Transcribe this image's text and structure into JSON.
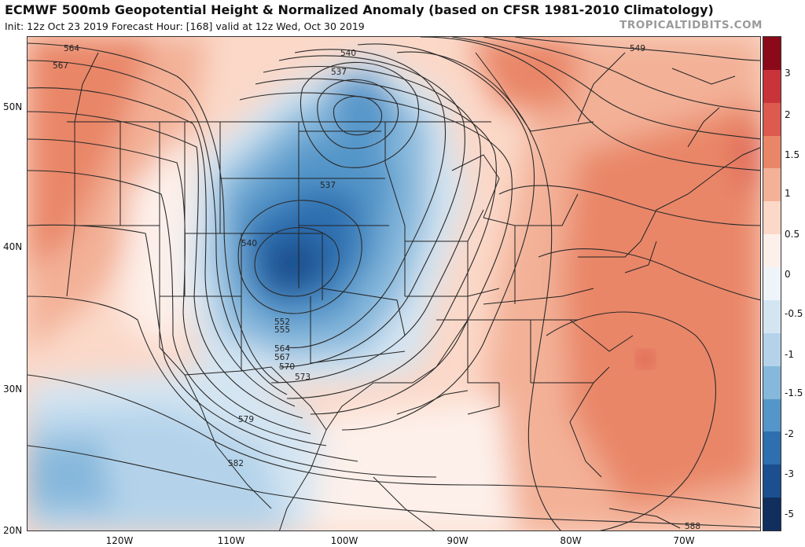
{
  "header": {
    "title": "ECMWF 500mb Geopotential Height & Normalized Anomaly (based on CFSR 1981-2010 Climatology)",
    "subtitle": "Init: 12z Oct 23 2019   Forecast Hour: [168]   valid at 12z Wed, Oct 30 2019",
    "brand": "TROPICALTIDBITS.COM"
  },
  "axes": {
    "lat_labels": [
      "50N",
      "40N",
      "30N",
      "20N"
    ],
    "lon_labels": [
      "120W",
      "110W",
      "100W",
      "90W",
      "80W",
      "70W"
    ]
  },
  "colorbar": {
    "labels": [
      "3",
      "2",
      "1.5",
      "1",
      "0.5",
      "0",
      "-0.5",
      "-1",
      "-1.5",
      "-2",
      "-3",
      "-5"
    ],
    "colors": [
      "#8b0a1a",
      "#c8343a",
      "#dc5a4e",
      "#e98668",
      "#f3b197",
      "#fbd8c8",
      "#fdf0ea",
      "#eef4fa",
      "#d4e5f2",
      "#b4d3ea",
      "#86b8dc",
      "#5496c9",
      "#2e6fb0",
      "#1b4f8f",
      "#102f5e"
    ]
  },
  "contour_labels": [
    "540",
    "537",
    "537",
    "540",
    "552",
    "555",
    "564",
    "567",
    "570",
    "573",
    "579",
    "582",
    "549",
    "564",
    "567",
    "588"
  ],
  "colors": {
    "warm": "#f2a98c",
    "cold": "#2f6db3",
    "land_border": "#222222"
  }
}
